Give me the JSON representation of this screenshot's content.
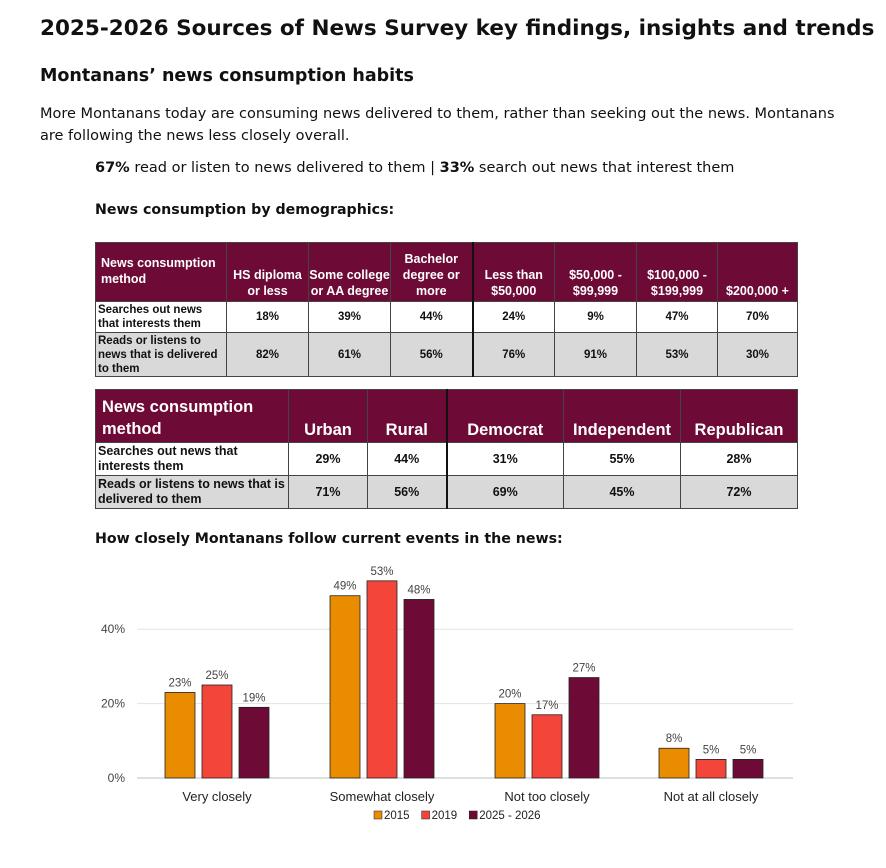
{
  "header": {
    "title": "2025-2026 Sources of News Survey key findings, insights and trends",
    "section_title": "Montanans’ news consumption habits",
    "intro": "More Montanans today are consuming news delivered to them, rather than seeking out the news. Montanans are following the news less closely overall.",
    "stat": {
      "delivered_pct": "67%",
      "delivered_text": " read or listen to news delivered to them | ",
      "search_pct": "33%",
      "search_text": " search out news that interest them"
    }
  },
  "table1": {
    "heading": "News consumption by demographics:",
    "headers": [
      "News consumption method",
      "HS diploma or less",
      "Some college or AA degree",
      "Bachelor degree or more",
      "Less than $50,000",
      "$50,000 - $99,999",
      "$100,000 - $199,999",
      "$200,000 +"
    ],
    "rows": [
      [
        "Searches out news that interests them",
        "18%",
        "39%",
        "44%",
        "24%",
        "9%",
        "47%",
        "70%"
      ],
      [
        "Reads or listens to news that is delivered to them",
        "82%",
        "61%",
        "56%",
        "76%",
        "91%",
        "53%",
        "30%"
      ]
    ]
  },
  "table2": {
    "headers": [
      "News consumption method",
      "Urban",
      "Rural",
      "Democrat",
      "Independent",
      "Republican"
    ],
    "rows": [
      [
        "Searches out news that interests them",
        "29%",
        "44%",
        "31%",
        "55%",
        "28%"
      ],
      [
        "Reads or listens to news that is delivered to them",
        "71%",
        "56%",
        "69%",
        "45%",
        "72%"
      ]
    ]
  },
  "chart_data": {
    "type": "bar",
    "title": "How closely Montanans follow current events in the news:",
    "categories": [
      "Very closely",
      "Somewhat closely",
      "Not too closely",
      "Not at all closely"
    ],
    "series": [
      {
        "name": "2015",
        "values": [
          23,
          49,
          20,
          8
        ],
        "color": "#ea8c00"
      },
      {
        "name": "2019",
        "values": [
          25,
          53,
          17,
          5
        ],
        "color": "#f4453a"
      },
      {
        "name": "2025 - 2026",
        "values": [
          19,
          48,
          27,
          5
        ],
        "color": "#6d0a36"
      }
    ],
    "yticks": [
      "0%",
      "20%",
      "40%"
    ],
    "ylim": [
      0,
      55
    ],
    "unit": "%",
    "legend": "bottom",
    "grid": true
  }
}
